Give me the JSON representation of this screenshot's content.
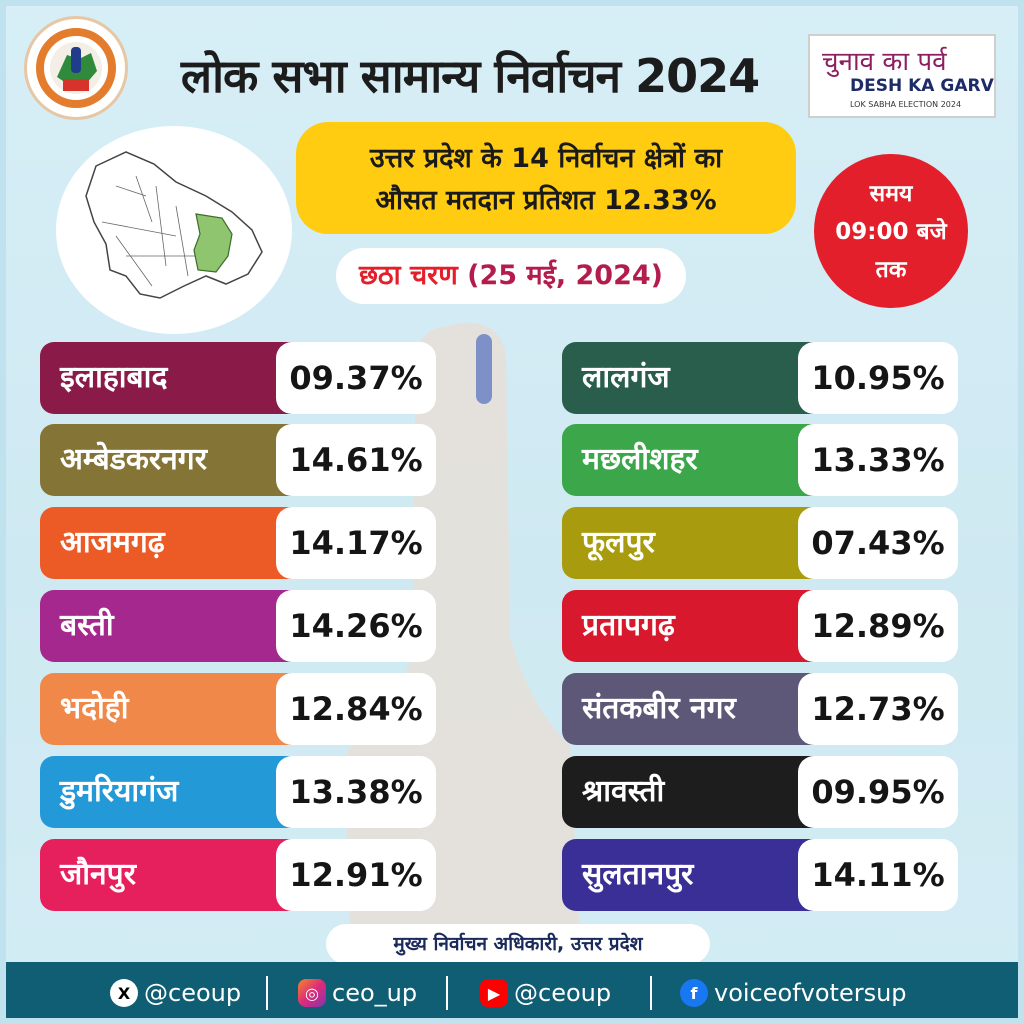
{
  "header": {
    "title": "लोक सभा सामान्य निर्वाचन 2024",
    "summary_line1": "उत्तर प्रदेश के 14 निर्वाचन क्षेत्रों का",
    "summary_line2": "औसत मतदान प्रतिशत 12.33%",
    "time_line1": "समय",
    "time_line2": "09:00 बजे",
    "time_line3": "तक",
    "phase_label": "छठा चरण",
    "phase_date": "(25 मई, 2024)"
  },
  "brand": {
    "hindi": "चुनाव का पर्व",
    "english": "DESH KA GARV",
    "sub": "LOK SABHA ELECTION 2024"
  },
  "colors": {
    "accent_yellow": "#ffcc11",
    "accent_red": "#e21f2a",
    "footer": "#0f5e73"
  },
  "left_constituencies": [
    {
      "name": "इलाहाबाद",
      "percent": "09.37%",
      "color": "#8a1a48"
    },
    {
      "name": "अम्बेडकरनगर",
      "percent": "14.61%",
      "color": "#847536"
    },
    {
      "name": "आजमगढ़",
      "percent": "14.17%",
      "color": "#ec5b25"
    },
    {
      "name": "बस्ती",
      "percent": "14.26%",
      "color": "#a4288e"
    },
    {
      "name": "भदोही",
      "percent": "12.84%",
      "color": "#f0884a"
    },
    {
      "name": "डुमरियागंज",
      "percent": "13.38%",
      "color": "#2399d8"
    },
    {
      "name": "जौनपुर",
      "percent": "12.91%",
      "color": "#e5205c"
    }
  ],
  "right_constituencies": [
    {
      "name": "लालगंज",
      "percent": "10.95%",
      "color": "#285e4b"
    },
    {
      "name": "मछलीशहर",
      "percent": "13.33%",
      "color": "#3ba64a"
    },
    {
      "name": "फूलपुर",
      "percent": "07.43%",
      "color": "#a89c0e"
    },
    {
      "name": "प्रतापगढ़",
      "percent": "12.89%",
      "color": "#d8182c"
    },
    {
      "name": "संतकबीर नगर",
      "percent": "12.73%",
      "color": "#5e5878"
    },
    {
      "name": "श्रावस्ती",
      "percent": "09.95%",
      "color": "#1d1d1d"
    },
    {
      "name": "सुलतानपुर",
      "percent": "14.11%",
      "color": "#3a2f97"
    }
  ],
  "footer": {
    "org": "मुख्य निर्वाचन अधिकारी, उत्तर प्रदेश",
    "social": [
      {
        "icon": "x-icon",
        "handle": "@ceoup"
      },
      {
        "icon": "instagram-icon",
        "handle": "ceo_up"
      },
      {
        "icon": "youtube-icon",
        "handle": "@ceoup"
      },
      {
        "icon": "facebook-icon",
        "handle": "voiceofvotersup"
      }
    ]
  }
}
